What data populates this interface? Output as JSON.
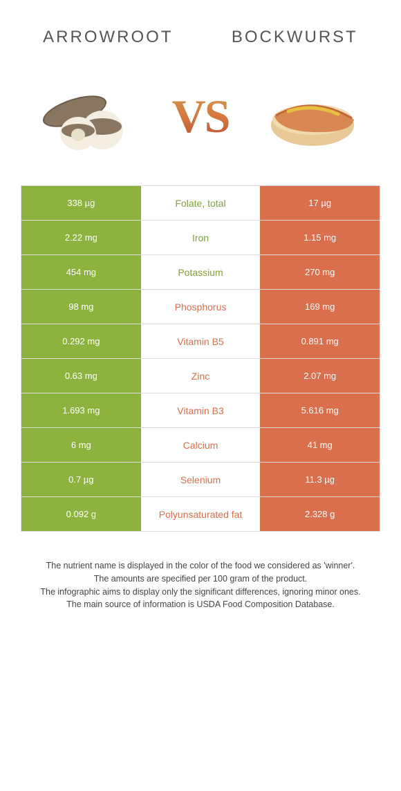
{
  "colors": {
    "left": "#8bb33d",
    "right": "#d96f4c",
    "left_text": "#7da238",
    "right_text": "#d96f4c",
    "border": "#dddddd",
    "bg": "#ffffff"
  },
  "header": {
    "left_title": "ARROWROOT",
    "right_title": "BOCKWURST",
    "vs": "VS"
  },
  "table": {
    "rows": [
      {
        "left": "338 µg",
        "label": "Folate, total",
        "right": "17 µg",
        "winner": "left"
      },
      {
        "left": "2.22 mg",
        "label": "Iron",
        "right": "1.15 mg",
        "winner": "left"
      },
      {
        "left": "454 mg",
        "label": "Potassium",
        "right": "270 mg",
        "winner": "left"
      },
      {
        "left": "98 mg",
        "label": "Phosphorus",
        "right": "169 mg",
        "winner": "right"
      },
      {
        "left": "0.292 mg",
        "label": "Vitamin B5",
        "right": "0.891 mg",
        "winner": "right"
      },
      {
        "left": "0.63 mg",
        "label": "Zinc",
        "right": "2.07 mg",
        "winner": "right"
      },
      {
        "left": "1.693 mg",
        "label": "Vitamin B3",
        "right": "5.616 mg",
        "winner": "right"
      },
      {
        "left": "6 mg",
        "label": "Calcium",
        "right": "41 mg",
        "winner": "right"
      },
      {
        "left": "0.7 µg",
        "label": "Selenium",
        "right": "11.3 µg",
        "winner": "right"
      },
      {
        "left": "0.092 g",
        "label": "Polyunsaturated fat",
        "right": "2.328 g",
        "winner": "right"
      }
    ]
  },
  "footer": {
    "line1": "The nutrient name is displayed in the color of the food we considered as 'winner'.",
    "line2": "The amounts are specified per 100 gram of the product.",
    "line3": "The infographic aims to display only the significant differences, ignoring minor ones.",
    "line4": "The main source of information is USDA Food Composition Database."
  }
}
